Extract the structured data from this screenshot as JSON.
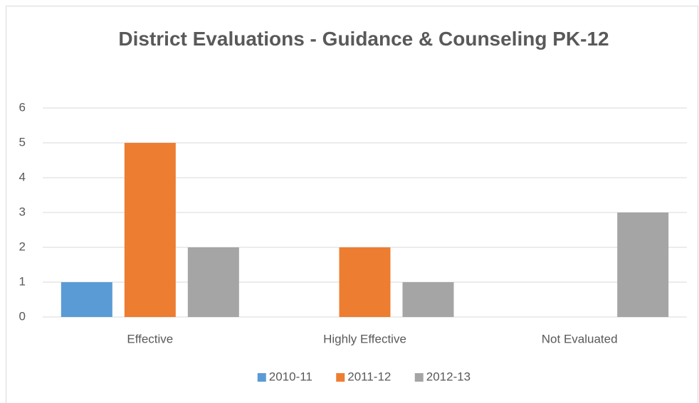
{
  "chart_data": {
    "type": "bar",
    "title": "District Evaluations - Guidance & Counseling PK-12",
    "categories": [
      "Effective",
      "Highly Effective",
      "Not Evaluated"
    ],
    "series": [
      {
        "name": "2010-11",
        "color": "#5b9bd5",
        "values": [
          1,
          0,
          0
        ]
      },
      {
        "name": "2011-12",
        "color": "#ed7d31",
        "values": [
          5,
          2,
          0
        ]
      },
      {
        "name": "2012-13",
        "color": "#a5a5a5",
        "values": [
          2,
          1,
          3
        ]
      }
    ],
    "ylim": [
      0,
      6
    ],
    "yticks": [
      0,
      1,
      2,
      3,
      4,
      5,
      6
    ],
    "grid": true,
    "legend": "bottom"
  }
}
